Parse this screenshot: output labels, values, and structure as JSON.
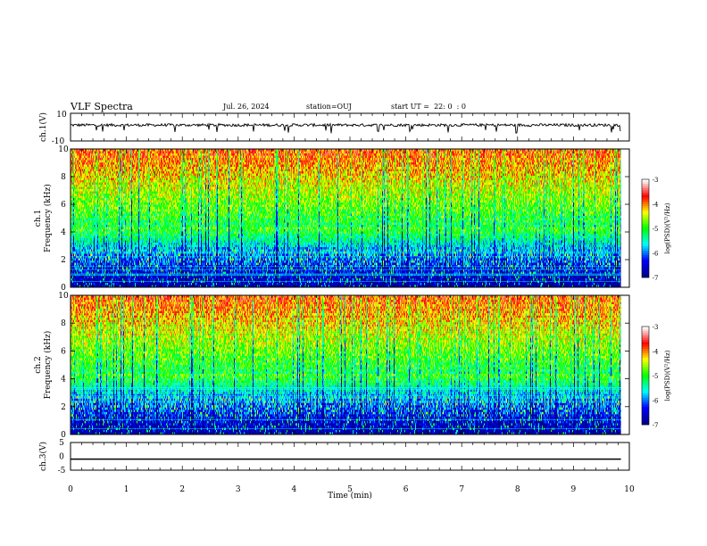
{
  "header": {
    "title": "VLF Spectra",
    "date": "Jul. 26, 2024",
    "station": "station=OUJ",
    "start_ut": "start UT =  22: 0  : 0"
  },
  "chart_data": [
    {
      "type": "line",
      "name": "ch1-waveform",
      "ylabel": "ch.1(V)",
      "ylim": [
        -10,
        10
      ],
      "yticks": [
        "10",
        "-10"
      ],
      "xlim": [
        0,
        10
      ],
      "baseline": 1.5,
      "noise": 2.0,
      "color": "#000000"
    },
    {
      "type": "heatmap",
      "name": "ch1-spectrogram",
      "ylabel_top": "ch.1",
      "ylabel": "Frequency (kHz)",
      "ylim": [
        0,
        10
      ],
      "yticks": [
        "0",
        "2",
        "4",
        "6",
        "8",
        "10"
      ],
      "xlim": [
        0,
        9.85
      ],
      "colorbar": {
        "label": "log(PSD)(V²/Hz)",
        "range": [
          -7,
          -3
        ],
        "ticks": [
          "-3",
          "-4",
          "-5",
          "-6",
          "-7"
        ]
      }
    },
    {
      "type": "heatmap",
      "name": "ch2-spectrogram",
      "ylabel_top": "ch.2",
      "ylabel": "Frequency (kHz)",
      "ylim": [
        0,
        10
      ],
      "yticks": [
        "0",
        "2",
        "4",
        "6",
        "8",
        "10"
      ],
      "xlim": [
        0,
        9.85
      ],
      "colorbar": {
        "label": "log(PSD)(V²/Hz)",
        "range": [
          -7,
          -3
        ],
        "ticks": [
          "-3",
          "-4",
          "-5",
          "-6",
          "-7"
        ]
      }
    },
    {
      "type": "line",
      "name": "ch3-waveform",
      "ylabel": "ch.3(V)",
      "ylim": [
        -5,
        5
      ],
      "yticks": [
        "5",
        "0",
        "-5"
      ],
      "xlim": [
        0,
        10
      ],
      "value": -1.0,
      "color": "#000000"
    }
  ],
  "x_axis": {
    "label": "Time (min)",
    "ticks": [
      "0",
      "1",
      "2",
      "3",
      "4",
      "5",
      "6",
      "7",
      "8",
      "9",
      "10"
    ],
    "range": [
      0,
      10
    ]
  },
  "colormap": [
    "#ffffff",
    "#ff0000",
    "#ffff00",
    "#00ff00",
    "#00ffff",
    "#0000ff",
    "#00008b"
  ]
}
